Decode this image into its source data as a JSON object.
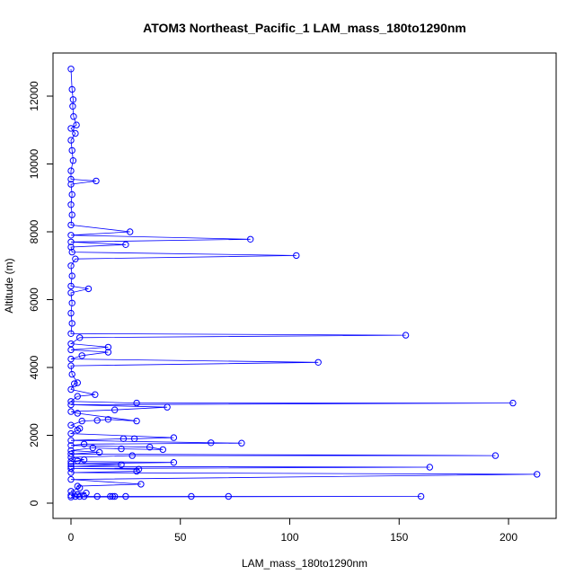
{
  "chart_data": {
    "type": "scatter",
    "title": "ATOM3 Northeast_Pacific_1 LAM_mass_180to1290nm",
    "xlabel": "LAM_mass_180to1290nm",
    "ylabel": "Altitude (m)",
    "xlim": [
      0,
      220
    ],
    "ylim": [
      0,
      13000
    ],
    "x_ticks": [
      0,
      50,
      100,
      150,
      200
    ],
    "y_ticks": [
      0,
      2000,
      4000,
      6000,
      8000,
      10000,
      12000
    ],
    "grid": false,
    "color": "#0000ff",
    "markers": "open-circle",
    "connected": true,
    "series": [
      {
        "points": [
          {
            "x": 0,
            "y": 12800
          },
          {
            "x": 0.5,
            "y": 12200
          },
          {
            "x": 1.0,
            "y": 11900
          },
          {
            "x": 0.8,
            "y": 11700
          },
          {
            "x": 1.2,
            "y": 11400
          },
          {
            "x": 2.5,
            "y": 11150
          },
          {
            "x": 0,
            "y": 11050
          },
          {
            "x": 2.0,
            "y": 10900
          },
          {
            "x": 0,
            "y": 10700
          },
          {
            "x": 0.5,
            "y": 10400
          },
          {
            "x": 1.0,
            "y": 10100
          },
          {
            "x": 0,
            "y": 9800
          },
          {
            "x": 0,
            "y": 9550
          },
          {
            "x": 11.5,
            "y": 9500
          },
          {
            "x": 0,
            "y": 9400
          },
          {
            "x": 0.5,
            "y": 9100
          },
          {
            "x": 0,
            "y": 8800
          },
          {
            "x": 0.5,
            "y": 8500
          },
          {
            "x": 0,
            "y": 8200
          },
          {
            "x": 27,
            "y": 8000
          },
          {
            "x": 0,
            "y": 7900
          },
          {
            "x": 82,
            "y": 7780
          },
          {
            "x": 0,
            "y": 7700
          },
          {
            "x": 25,
            "y": 7620
          },
          {
            "x": 0,
            "y": 7550
          },
          {
            "x": 0.5,
            "y": 7400
          },
          {
            "x": 103,
            "y": 7300
          },
          {
            "x": 2,
            "y": 7200
          },
          {
            "x": 0,
            "y": 7000
          },
          {
            "x": 0.5,
            "y": 6700
          },
          {
            "x": 0,
            "y": 6400
          },
          {
            "x": 8,
            "y": 6320
          },
          {
            "x": 0,
            "y": 6200
          },
          {
            "x": 0.5,
            "y": 5900
          },
          {
            "x": 0,
            "y": 5600
          },
          {
            "x": 0.5,
            "y": 5300
          },
          {
            "x": 0,
            "y": 5000
          },
          {
            "x": 153,
            "y": 4950
          },
          {
            "x": 4,
            "y": 4880
          },
          {
            "x": 0,
            "y": 4700
          },
          {
            "x": 17,
            "y": 4600
          },
          {
            "x": 0,
            "y": 4520
          },
          {
            "x": 17,
            "y": 4450
          },
          {
            "x": 5,
            "y": 4350
          },
          {
            "x": 0,
            "y": 4250
          },
          {
            "x": 113,
            "y": 4150
          },
          {
            "x": 0,
            "y": 4050
          },
          {
            "x": 0.5,
            "y": 3800
          },
          {
            "x": 3,
            "y": 3550
          },
          {
            "x": 1.5,
            "y": 3520
          },
          {
            "x": 0,
            "y": 3350
          },
          {
            "x": 11,
            "y": 3200
          },
          {
            "x": 3,
            "y": 3150
          },
          {
            "x": 0,
            "y": 3000
          },
          {
            "x": 30,
            "y": 2950
          },
          {
            "x": 202,
            "y": 2950
          },
          {
            "x": 0,
            "y": 2900
          },
          {
            "x": 44,
            "y": 2830
          },
          {
            "x": 20,
            "y": 2750
          },
          {
            "x": 0,
            "y": 2700
          },
          {
            "x": 3,
            "y": 2650
          },
          {
            "x": 30,
            "y": 2420
          },
          {
            "x": 17,
            "y": 2470
          },
          {
            "x": 12,
            "y": 2440
          },
          {
            "x": 5,
            "y": 2420
          },
          {
            "x": 0,
            "y": 2300
          },
          {
            "x": 4,
            "y": 2200
          },
          {
            "x": 3,
            "y": 2150
          },
          {
            "x": 0,
            "y": 2050
          },
          {
            "x": 47,
            "y": 1930
          },
          {
            "x": 29,
            "y": 1900
          },
          {
            "x": 24,
            "y": 1900
          },
          {
            "x": 0,
            "y": 1850
          },
          {
            "x": 64,
            "y": 1780
          },
          {
            "x": 78,
            "y": 1770
          },
          {
            "x": 6,
            "y": 1740
          },
          {
            "x": 0,
            "y": 1700
          },
          {
            "x": 36,
            "y": 1650
          },
          {
            "x": 42,
            "y": 1580
          },
          {
            "x": 23,
            "y": 1600
          },
          {
            "x": 10,
            "y": 1630
          },
          {
            "x": 0,
            "y": 1550
          },
          {
            "x": 13,
            "y": 1500
          },
          {
            "x": 0,
            "y": 1450
          },
          {
            "x": 194,
            "y": 1400
          },
          {
            "x": 28,
            "y": 1400
          },
          {
            "x": 0,
            "y": 1350
          },
          {
            "x": 6,
            "y": 1280
          },
          {
            "x": 3,
            "y": 1250
          },
          {
            "x": 0,
            "y": 1230
          },
          {
            "x": 47,
            "y": 1200
          },
          {
            "x": 0,
            "y": 1160
          },
          {
            "x": 23,
            "y": 1130
          },
          {
            "x": 0,
            "y": 1080
          },
          {
            "x": 164,
            "y": 1060
          },
          {
            "x": 0,
            "y": 1020
          },
          {
            "x": 31,
            "y": 1000
          },
          {
            "x": 30,
            "y": 940
          },
          {
            "x": 0,
            "y": 900
          },
          {
            "x": 213,
            "y": 850
          },
          {
            "x": 0,
            "y": 700
          },
          {
            "x": 32,
            "y": 560
          },
          {
            "x": 3,
            "y": 500
          },
          {
            "x": 4,
            "y": 450
          },
          {
            "x": 0,
            "y": 350
          },
          {
            "x": 7,
            "y": 300
          },
          {
            "x": 3,
            "y": 250
          },
          {
            "x": 0,
            "y": 230
          },
          {
            "x": 2,
            "y": 200
          },
          {
            "x": 4,
            "y": 200
          },
          {
            "x": 6,
            "y": 200
          },
          {
            "x": 12,
            "y": 200
          },
          {
            "x": 18,
            "y": 200
          },
          {
            "x": 19,
            "y": 200
          },
          {
            "x": 20,
            "y": 200
          },
          {
            "x": 25,
            "y": 200
          },
          {
            "x": 55,
            "y": 200
          },
          {
            "x": 72,
            "y": 200
          },
          {
            "x": 160,
            "y": 200
          },
          {
            "x": 0,
            "y": 180
          }
        ]
      }
    ]
  }
}
